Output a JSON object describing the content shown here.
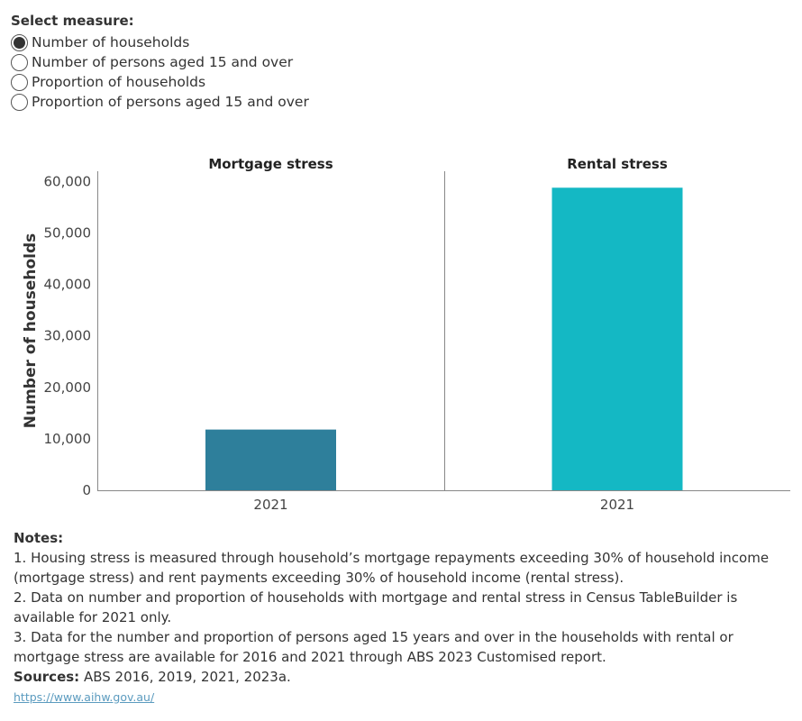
{
  "measure_selector": {
    "title": "Select measure:",
    "options": [
      {
        "label": "Number of households",
        "selected": true
      },
      {
        "label": "Number of persons aged 15 and over",
        "selected": false
      },
      {
        "label": "Proportion of households",
        "selected": false
      },
      {
        "label": "Proportion of persons aged 15 and over",
        "selected": false
      }
    ]
  },
  "chart_data": {
    "type": "bar",
    "ylabel": "Number of households",
    "ylim": [
      0,
      62000
    ],
    "yticks": [
      0,
      10000,
      20000,
      30000,
      40000,
      50000,
      60000
    ],
    "ytick_labels": [
      "0",
      "10,000",
      "20,000",
      "30,000",
      "40,000",
      "50,000",
      "60,000"
    ],
    "grid": false,
    "panels": [
      {
        "title": "Mortgage stress",
        "categories": [
          "2021"
        ],
        "values": [
          11800
        ],
        "color": "#2e7f9b"
      },
      {
        "title": "Rental stress",
        "categories": [
          "2021"
        ],
        "values": [
          58800
        ],
        "color": "#14b8c4"
      }
    ]
  },
  "notes": {
    "title": "Notes:",
    "items": [
      "1. Housing stress is measured through household’s mortgage repayments exceeding 30% of household income (mortgage stress) and rent payments exceeding 30% of household income (rental stress).",
      "2. Data on number and proportion of households with mortgage and rental stress in Census TableBuilder is available for 2021 only.",
      "3. Data for the number and proportion of persons aged 15 years and over in the households with rental or mortgage stress are available for 2016 and 2021 through ABS 2023 Customised report."
    ],
    "sources_label": "Sources:",
    "sources_text": " ABS 2016, 2019, 2021, 2023a.",
    "link": "https://www.aihw.gov.au/"
  }
}
